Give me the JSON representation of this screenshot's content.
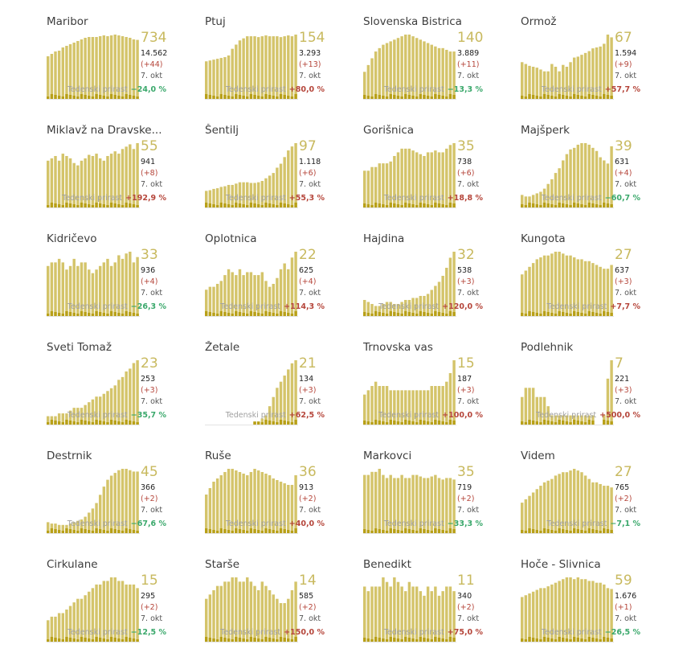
{
  "common": {
    "growth_label": "Tedenski prirast",
    "date": "7. okt"
  },
  "colors": {
    "bar": "#d4c46a",
    "bar_dark": "#b8a018",
    "big_number": "#c8b95e",
    "increase": "#b5453a",
    "decrease": "#3aa86b"
  },
  "chart_data": [
    {
      "type": "bar",
      "title": "Maribor",
      "active": 734,
      "total": "14.562",
      "new": "(+44)",
      "growth": "−24,0 %",
      "direction": "down",
      "values": [
        530,
        560,
        590,
        600,
        640,
        660,
        680,
        700,
        720,
        740,
        760,
        770,
        770,
        770,
        780,
        790,
        780,
        790,
        800,
        790,
        780,
        770,
        760,
        740,
        734
      ]
    },
    {
      "type": "bar",
      "title": "Ptuj",
      "active": 154,
      "total": "3.293",
      "new": "(+13)",
      "growth": "+80,0 %",
      "direction": "up",
      "values": [
        90,
        92,
        94,
        96,
        98,
        100,
        104,
        120,
        130,
        140,
        145,
        150,
        150,
        150,
        148,
        150,
        152,
        150,
        150,
        150,
        148,
        150,
        152,
        150,
        154
      ]
    },
    {
      "type": "bar",
      "title": "Slovenska Bistrica",
      "active": 140,
      "total": "3.889",
      "new": "(+11)",
      "growth": "−13,3 %",
      "direction": "down",
      "values": [
        80,
        100,
        120,
        140,
        150,
        160,
        165,
        170,
        175,
        180,
        185,
        190,
        190,
        185,
        180,
        175,
        170,
        165,
        160,
        155,
        150,
        150,
        145,
        140,
        140
      ]
    },
    {
      "type": "bar",
      "title": "Ormož",
      "active": 67,
      "total": "1.594",
      "new": "(+9)",
      "growth": "+57,7 %",
      "direction": "up",
      "values": [
        40,
        38,
        36,
        35,
        34,
        32,
        30,
        30,
        38,
        35,
        30,
        37,
        35,
        40,
        45,
        46,
        48,
        50,
        52,
        55,
        56,
        57,
        60,
        70,
        67
      ]
    },
    {
      "type": "bar",
      "title": "Miklavž na Dravske...",
      "active": 55,
      "total": "941",
      "new": "(+8)",
      "growth": "+192,9 %",
      "direction": "up",
      "values": [
        40,
        42,
        44,
        40,
        46,
        44,
        42,
        38,
        36,
        40,
        42,
        45,
        44,
        46,
        42,
        40,
        44,
        46,
        48,
        46,
        50,
        52,
        54,
        50,
        55
      ]
    },
    {
      "type": "bar",
      "title": "Šentilj",
      "active": 97,
      "total": "1.118",
      "new": "(+6)",
      "growth": "+55,3 %",
      "direction": "up",
      "values": [
        25,
        26,
        28,
        29,
        31,
        32,
        34,
        34,
        36,
        38,
        38,
        38,
        37,
        37,
        38,
        40,
        44,
        48,
        52,
        60,
        66,
        76,
        86,
        92,
        97
      ]
    },
    {
      "type": "bar",
      "title": "Gorišnica",
      "active": 35,
      "total": "738",
      "new": "(+6)",
      "growth": "+18,8 %",
      "direction": "up",
      "values": [
        20,
        20,
        22,
        22,
        24,
        24,
        24,
        25,
        28,
        30,
        32,
        32,
        32,
        31,
        30,
        29,
        28,
        30,
        30,
        31,
        30,
        30,
        32,
        34,
        35
      ]
    },
    {
      "type": "bar",
      "title": "Majšperk",
      "active": 39,
      "total": "631",
      "new": "(+4)",
      "growth": "−60,7 %",
      "direction": "down",
      "values": [
        8,
        7,
        7,
        8,
        9,
        10,
        12,
        15,
        18,
        22,
        25,
        30,
        34,
        37,
        38,
        40,
        41,
        41,
        40,
        38,
        36,
        32,
        30,
        28,
        39
      ]
    },
    {
      "type": "bar",
      "title": "Kidričevo",
      "active": 33,
      "total": "936",
      "new": "(+4)",
      "growth": "−26,3 %",
      "direction": "down",
      "values": [
        28,
        30,
        30,
        32,
        30,
        26,
        28,
        32,
        28,
        30,
        30,
        26,
        24,
        26,
        28,
        30,
        32,
        28,
        30,
        34,
        32,
        35,
        36,
        30,
        33
      ]
    },
    {
      "type": "bar",
      "title": "Oplotnica",
      "active": 22,
      "total": "625",
      "new": "(+4)",
      "growth": "+114,3 %",
      "direction": "up",
      "values": [
        9,
        10,
        10,
        11,
        12,
        14,
        16,
        15,
        14,
        16,
        14,
        15,
        15,
        14,
        14,
        15,
        12,
        10,
        11,
        13,
        16,
        18,
        16,
        20,
        22
      ]
    },
    {
      "type": "bar",
      "title": "Hajdina",
      "active": 32,
      "total": "538",
      "new": "(+3)",
      "growth": "+120,0 %",
      "direction": "up",
      "values": [
        8,
        7,
        6,
        5,
        5,
        6,
        7,
        7,
        6,
        6,
        7,
        8,
        8,
        9,
        9,
        10,
        10,
        11,
        13,
        15,
        17,
        20,
        24,
        29,
        32
      ]
    },
    {
      "type": "bar",
      "title": "Kungota",
      "active": 27,
      "total": "637",
      "new": "(+3)",
      "growth": "+7,7 %",
      "direction": "up",
      "values": [
        22,
        24,
        26,
        28,
        30,
        31,
        32,
        32,
        33,
        34,
        34,
        33,
        32,
        32,
        31,
        30,
        30,
        29,
        29,
        28,
        27,
        26,
        25,
        25,
        27
      ]
    },
    {
      "type": "bar",
      "title": "Sveti Tomaž",
      "active": 23,
      "total": "253",
      "new": "(+3)",
      "growth": "−35,7 %",
      "direction": "down",
      "values": [
        3,
        3,
        3,
        4,
        4,
        4,
        5,
        6,
        6,
        6,
        7,
        8,
        9,
        10,
        10,
        11,
        12,
        13,
        14,
        16,
        17,
        19,
        20,
        22,
        23
      ]
    },
    {
      "type": "bar",
      "title": "Žetale",
      "active": 21,
      "total": "134",
      "new": "(+3)",
      "growth": "+62,5 %",
      "direction": "up",
      "values": [
        0,
        0,
        0,
        0,
        0,
        0,
        0,
        0,
        0,
        0,
        0,
        0,
        0,
        1,
        1,
        2,
        3,
        6,
        9,
        12,
        14,
        16,
        18,
        20,
        21
      ]
    },
    {
      "type": "bar",
      "title": "Trnovska vas",
      "active": 15,
      "total": "187",
      "new": "(+3)",
      "growth": "+100,0 %",
      "direction": "up",
      "values": [
        7,
        8,
        9,
        10,
        9,
        9,
        9,
        8,
        8,
        8,
        8,
        8,
        8,
        8,
        8,
        8,
        8,
        8,
        9,
        9,
        9,
        9,
        10,
        12,
        15
      ]
    },
    {
      "type": "bar",
      "title": "Podlehnik",
      "active": 7,
      "total": "221",
      "new": "(+3)",
      "growth": "+500,0 %",
      "direction": "up",
      "values": [
        3,
        4,
        4,
        4,
        3,
        3,
        3,
        2,
        1,
        1,
        1,
        1,
        1,
        1,
        1,
        1,
        1,
        1,
        1,
        1,
        0,
        0,
        1,
        5,
        7
      ]
    },
    {
      "type": "bar",
      "title": "Destrnik",
      "active": 45,
      "total": "366",
      "new": "(+2)",
      "growth": "−67,6 %",
      "direction": "down",
      "values": [
        8,
        7,
        7,
        6,
        6,
        6,
        7,
        8,
        9,
        10,
        12,
        15,
        18,
        22,
        28,
        34,
        39,
        42,
        44,
        46,
        47,
        47,
        46,
        45,
        45
      ]
    },
    {
      "type": "bar",
      "title": "Ruše",
      "active": 36,
      "total": "913",
      "new": "(+2)",
      "growth": "+40,0 %",
      "direction": "up",
      "values": [
        24,
        28,
        32,
        34,
        36,
        38,
        40,
        40,
        39,
        38,
        37,
        36,
        38,
        40,
        39,
        38,
        37,
        36,
        34,
        33,
        32,
        31,
        30,
        30,
        36
      ]
    },
    {
      "type": "bar",
      "title": "Markovci",
      "active": 35,
      "total": "719",
      "new": "(+2)",
      "growth": "−33,3 %",
      "direction": "down",
      "values": [
        38,
        38,
        40,
        40,
        42,
        38,
        36,
        38,
        36,
        36,
        38,
        36,
        36,
        38,
        38,
        37,
        36,
        36,
        37,
        38,
        36,
        35,
        36,
        36,
        35
      ]
    },
    {
      "type": "bar",
      "title": "Videm",
      "active": 27,
      "total": "765",
      "new": "(+2)",
      "growth": "−7,1 %",
      "direction": "down",
      "values": [
        18,
        20,
        22,
        24,
        26,
        28,
        30,
        31,
        32,
        34,
        35,
        36,
        36,
        37,
        38,
        37,
        36,
        34,
        32,
        30,
        30,
        29,
        28,
        28,
        27
      ]
    },
    {
      "type": "bar",
      "title": "Cirkulane",
      "active": 15,
      "total": "295",
      "new": "(+2)",
      "growth": "−12,5 %",
      "direction": "down",
      "values": [
        6,
        7,
        7,
        8,
        8,
        9,
        10,
        11,
        12,
        12,
        13,
        14,
        15,
        16,
        16,
        17,
        17,
        18,
        18,
        17,
        17,
        16,
        16,
        16,
        15
      ]
    },
    {
      "type": "bar",
      "title": "Starše",
      "active": 14,
      "total": "585",
      "new": "(+2)",
      "growth": "+150,0 %",
      "direction": "up",
      "values": [
        10,
        11,
        12,
        13,
        13,
        14,
        14,
        15,
        15,
        14,
        14,
        15,
        14,
        13,
        12,
        14,
        13,
        12,
        11,
        10,
        9,
        9,
        10,
        12,
        14
      ]
    },
    {
      "type": "bar",
      "title": "Benedikt",
      "active": 11,
      "total": "340",
      "new": "(+2)",
      "growth": "+75,0 %",
      "direction": "up",
      "values": [
        12,
        11,
        12,
        12,
        12,
        14,
        13,
        12,
        14,
        13,
        12,
        11,
        13,
        12,
        12,
        11,
        10,
        12,
        11,
        12,
        10,
        11,
        12,
        12,
        11
      ]
    },
    {
      "type": "bar",
      "title": "Hoče - Slivnica",
      "active": 59,
      "total": "1.676",
      "new": "(+1)",
      "growth": "−26,5 %",
      "direction": "down",
      "values": [
        50,
        52,
        54,
        56,
        58,
        60,
        60,
        62,
        64,
        66,
        68,
        70,
        72,
        72,
        70,
        72,
        70,
        70,
        68,
        68,
        66,
        66,
        64,
        60,
        59
      ]
    }
  ]
}
